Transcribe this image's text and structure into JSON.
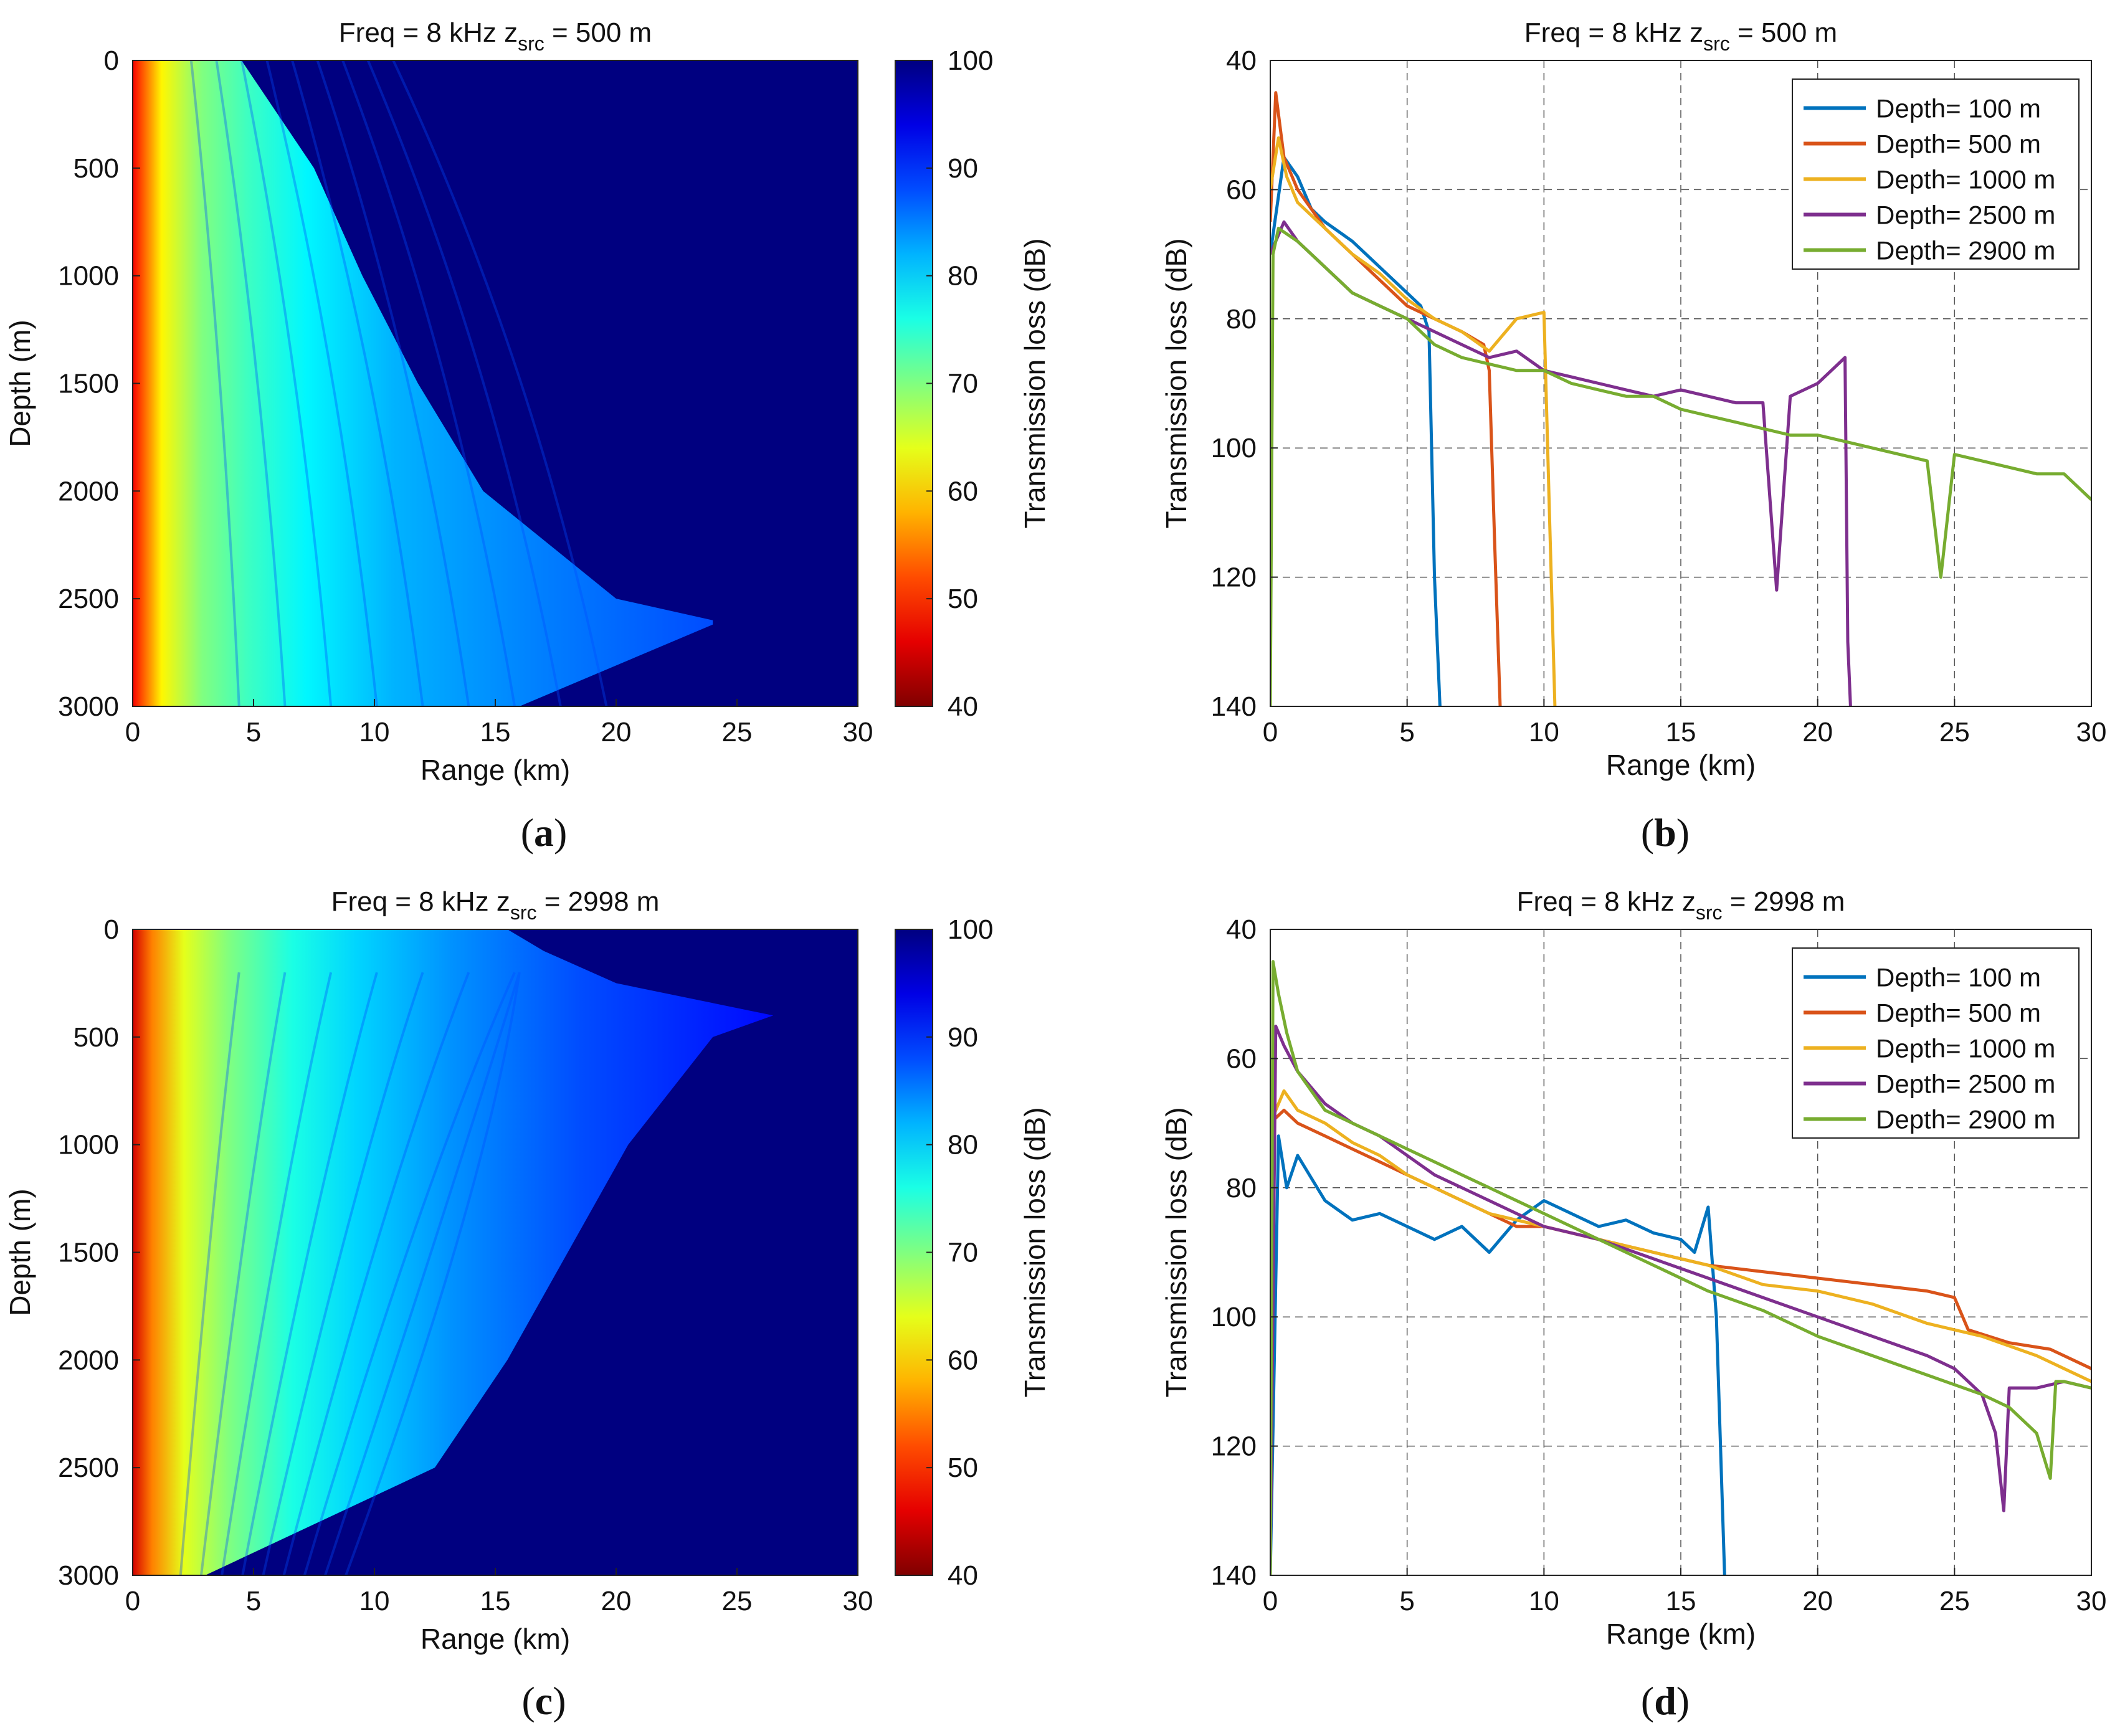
{
  "figure": {
    "captions": [
      {
        "open": "(",
        "letter": "a",
        "close": ")"
      },
      {
        "open": "(",
        "letter": "b",
        "close": ")"
      },
      {
        "open": "(",
        "letter": "c",
        "close": ")"
      },
      {
        "open": "(",
        "letter": "d",
        "close": ")"
      }
    ]
  },
  "colors": {
    "series": [
      "#0072BD",
      "#D95319",
      "#EDB120",
      "#7E2F8E",
      "#77AC30"
    ],
    "jet_low": "#800000",
    "jet_high": "#00008F"
  },
  "chart_data": [
    {
      "id": "a",
      "type": "heatmap",
      "title_main": "Freq = 8 kHz    z",
      "title_sub": "src",
      "title_tail": " = 500 m",
      "xlabel": "Range (km)",
      "ylabel": "Depth (m)",
      "colorbar_label": "Transmission loss (dB)",
      "xlim": [
        0,
        30
      ],
      "ylim": [
        0,
        3000
      ],
      "clim": [
        40,
        100
      ],
      "xticks": [
        "0",
        "5",
        "10",
        "15",
        "20",
        "25",
        "30"
      ],
      "yticks": [
        "0",
        "500",
        "1000",
        "1500",
        "2000",
        "2500",
        "3000"
      ],
      "cticks": [
        "40",
        "50",
        "60",
        "70",
        "80",
        "90",
        "100"
      ],
      "shadow_boundary_km": [
        [
          0,
          4.5
        ],
        [
          500,
          7.5
        ],
        [
          1000,
          9.5
        ],
        [
          1500,
          11.8
        ],
        [
          2000,
          14.5
        ],
        [
          2500,
          20
        ],
        [
          2600,
          24
        ]
      ],
      "near_field_tl_db": 45,
      "far_field_tl_db": 78,
      "shadow_tl_db": 100
    },
    {
      "id": "b",
      "type": "line",
      "title_main": "Freq = 8 kHz    z",
      "title_sub": "src",
      "title_tail": " = 500 m",
      "xlabel": "Range (km)",
      "ylabel": "Transmission loss (dB)",
      "xlim": [
        0,
        30
      ],
      "ylim": [
        40,
        140
      ],
      "y_reversed": true,
      "grid": true,
      "legend_position": "top-right",
      "xticks": [
        "0",
        "5",
        "10",
        "15",
        "20",
        "25",
        "30"
      ],
      "yticks": [
        "40",
        "60",
        "80",
        "100",
        "120",
        "140"
      ],
      "series": [
        {
          "name": "Depth= 100 m",
          "x": [
            0,
            0.5,
            1,
            1.5,
            2,
            3,
            4,
            5,
            5.5,
            5.8,
            6,
            6.2
          ],
          "y": [
            70,
            55,
            58,
            63,
            65,
            68,
            72,
            76,
            78,
            82,
            120,
            140
          ]
        },
        {
          "name": "Depth= 500 m",
          "x": [
            0,
            0.2,
            0.5,
            1,
            2,
            3,
            4,
            5,
            6,
            7,
            7.8,
            8,
            8.2,
            8.4
          ],
          "y": [
            65,
            45,
            55,
            60,
            66,
            70,
            74,
            78,
            80,
            82,
            84,
            88,
            115,
            140
          ]
        },
        {
          "name": "Depth= 1000 m",
          "x": [
            0,
            0.3,
            0.6,
            1,
            2,
            3,
            4,
            5,
            6,
            7,
            8,
            9,
            10,
            10.2,
            10.4
          ],
          "y": [
            60,
            52,
            58,
            62,
            66,
            70,
            73,
            77,
            80,
            82,
            85,
            80,
            79,
            110,
            140
          ]
        },
        {
          "name": "Depth= 2500 m",
          "x": [
            0,
            0.5,
            1,
            2,
            3,
            4,
            5,
            6,
            7,
            8,
            9,
            10,
            11,
            12,
            13,
            14,
            15,
            16,
            17,
            18,
            18.5,
            19,
            20,
            21,
            21.1,
            21.2
          ],
          "y": [
            70,
            65,
            68,
            72,
            76,
            78,
            80,
            82,
            84,
            86,
            85,
            88,
            89,
            90,
            91,
            92,
            91,
            92,
            93,
            93,
            122,
            92,
            90,
            86,
            130,
            140
          ]
        },
        {
          "name": "Depth= 2900 m",
          "x": [
            0,
            0.1,
            0.3,
            1,
            2,
            3,
            4,
            5,
            6,
            7,
            8,
            9,
            10,
            11,
            12,
            13,
            14,
            15,
            16,
            17,
            18,
            19,
            20,
            21,
            22,
            23,
            24,
            24.5,
            25,
            26,
            27,
            28,
            29,
            30
          ],
          "y": [
            140,
            70,
            66,
            68,
            72,
            76,
            78,
            80,
            84,
            86,
            87,
            88,
            88,
            90,
            91,
            92,
            92,
            94,
            95,
            96,
            97,
            98,
            98,
            99,
            100,
            101,
            102,
            120,
            101,
            102,
            103,
            104,
            104,
            108
          ]
        }
      ]
    },
    {
      "id": "c",
      "type": "heatmap",
      "title_main": "Freq = 8 kHz    z",
      "title_sub": "src",
      "title_tail": " = 2998 m",
      "xlabel": "Range (km)",
      "ylabel": "Depth (m)",
      "colorbar_label": "Transmission loss (dB)",
      "xlim": [
        0,
        30
      ],
      "ylim": [
        0,
        3000
      ],
      "clim": [
        40,
        100
      ],
      "xticks": [
        "0",
        "5",
        "10",
        "15",
        "20",
        "25",
        "30"
      ],
      "yticks": [
        "0",
        "500",
        "1000",
        "1500",
        "2000",
        "2500",
        "3000"
      ],
      "cticks": [
        "40",
        "50",
        "60",
        "70",
        "80",
        "90",
        "100"
      ],
      "surface_limit": [
        [
          0,
          15.5
        ],
        [
          100,
          17
        ],
        [
          250,
          20
        ],
        [
          400,
          26.5
        ]
      ],
      "bottom_limit": [
        [
          3000,
          3
        ],
        [
          2500,
          12.5
        ],
        [
          2000,
          15.5
        ],
        [
          1500,
          18
        ],
        [
          1000,
          20.5
        ],
        [
          500,
          24
        ],
        [
          400,
          26.5
        ]
      ],
      "near_field_tl_db": 48,
      "far_field_tl_db": 92,
      "shadow_tl_db": 100
    },
    {
      "id": "d",
      "type": "line",
      "title_main": "Freq = 8 kHz    z",
      "title_sub": "src",
      "title_tail": " = 2998 m",
      "xlabel": "Range (km)",
      "ylabel": "Transmission loss (dB)",
      "xlim": [
        0,
        30
      ],
      "ylim": [
        40,
        140
      ],
      "y_reversed": true,
      "grid": true,
      "legend_position": "top-right",
      "xticks": [
        "0",
        "5",
        "10",
        "15",
        "20",
        "25",
        "30"
      ],
      "yticks": [
        "40",
        "60",
        "80",
        "100",
        "120",
        "140"
      ],
      "series": [
        {
          "name": "Depth= 100 m",
          "x": [
            0,
            0.3,
            0.6,
            1,
            2,
            3,
            4,
            5,
            6,
            7,
            8,
            9,
            10,
            11,
            12,
            13,
            14,
            15,
            15.5,
            16,
            16.3,
            16.6
          ],
          "y": [
            140,
            72,
            80,
            75,
            82,
            85,
            84,
            86,
            88,
            86,
            90,
            85,
            82,
            84,
            86,
            85,
            87,
            88,
            90,
            83,
            100,
            140
          ]
        },
        {
          "name": "Depth= 500 m",
          "x": [
            0,
            0.5,
            1,
            2,
            3,
            4,
            5,
            6,
            7,
            8,
            9,
            10,
            12,
            14,
            16,
            18,
            20,
            22,
            24,
            25,
            25.5,
            27,
            28.5,
            30
          ],
          "y": [
            70,
            68,
            70,
            72,
            74,
            76,
            78,
            80,
            82,
            84,
            86,
            86,
            88,
            90,
            92,
            93,
            94,
            95,
            96,
            97,
            102,
            104,
            105,
            108
          ]
        },
        {
          "name": "Depth= 1000 m",
          "x": [
            0,
            0.5,
            1,
            2,
            3,
            4,
            5,
            6,
            7,
            8,
            9,
            10,
            12,
            14,
            16,
            18,
            20,
            21,
            22,
            24,
            26,
            28,
            30
          ],
          "y": [
            70,
            65,
            68,
            70,
            73,
            75,
            78,
            80,
            82,
            84,
            85,
            86,
            88,
            90,
            92,
            95,
            96,
            97,
            98,
            101,
            103,
            106,
            110
          ]
        },
        {
          "name": "Depth= 2500 m",
          "x": [
            0,
            0.2,
            0.5,
            1,
            2,
            3,
            4,
            5,
            6,
            7,
            8,
            9,
            10,
            12,
            14,
            16,
            18,
            20,
            22,
            24,
            25,
            26,
            26.5,
            26.8,
            27,
            28,
            29,
            30
          ],
          "y": [
            140,
            55,
            58,
            62,
            67,
            70,
            72,
            75,
            78,
            80,
            82,
            84,
            86,
            88,
            91,
            94,
            97,
            100,
            103,
            106,
            108,
            112,
            118,
            130,
            111,
            111,
            110,
            111
          ]
        },
        {
          "name": "Depth= 2900 m",
          "x": [
            0,
            0.1,
            0.3,
            0.6,
            1,
            2,
            3,
            4,
            5,
            6,
            7,
            8,
            10,
            12,
            14,
            16,
            18,
            20,
            22,
            24,
            26,
            27,
            28,
            28.5,
            28.7,
            29,
            30
          ],
          "y": [
            140,
            45,
            50,
            56,
            62,
            68,
            70,
            72,
            74,
            76,
            78,
            80,
            84,
            88,
            92,
            96,
            99,
            103,
            106,
            109,
            112,
            114,
            118,
            125,
            110,
            110,
            111
          ]
        }
      ]
    }
  ]
}
